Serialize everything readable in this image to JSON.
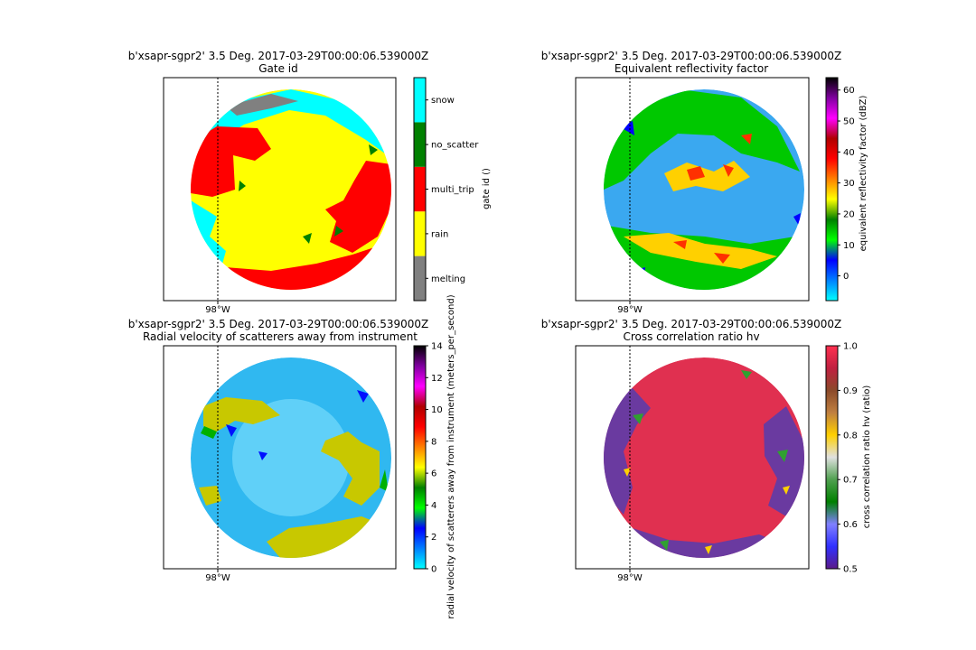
{
  "figure": {
    "background": "#ffffff"
  },
  "chart_data": [
    {
      "type": "heatmap",
      "kind": "categorical",
      "title": "b'xsapr-sgpr2' 3.5 Deg. 2017-03-29T00:00:06.539000Z",
      "subtitle": "Gate id",
      "colorbar_label": "gate id ()",
      "categories": [
        "melting",
        "rain",
        "multi_trip",
        "no_scatter",
        "snow"
      ],
      "category_colors": [
        "#808080",
        "#ffff00",
        "#ff0000",
        "#008000",
        "#00ffff"
      ],
      "xtick_labels": [
        "98°W"
      ],
      "gridline": "98°W dotted meridian"
    },
    {
      "type": "heatmap",
      "kind": "continuous",
      "title": "b'xsapr-sgpr2' 3.5 Deg. 2017-03-29T00:00:06.539000Z",
      "subtitle": "Equivalent reflectivity factor",
      "colorbar_label": "equivalent reflectivity factor (dBZ)",
      "vmin": -8,
      "vmax": 64,
      "colorbar_ticks": [
        0,
        10,
        20,
        30,
        40,
        50,
        60
      ],
      "colormap_stops": [
        "#00ffff",
        "#0080ff",
        "#0000ff",
        "#00ff00",
        "#008000",
        "#ffff00",
        "#ff8000",
        "#ff0000",
        "#b00000",
        "#ff00ff",
        "#8000a0",
        "#000000"
      ],
      "xtick_labels": [
        "98°W"
      ]
    },
    {
      "type": "heatmap",
      "kind": "continuous",
      "title": "b'xsapr-sgpr2' 3.5 Deg. 2017-03-29T00:00:06.539000Z",
      "subtitle": "Radial velocity of scatterers away from instrument",
      "colorbar_label": "radial velocity of scatterers away from instrument (meters_per_second)",
      "vmin": 0,
      "vmax": 14,
      "colorbar_ticks": [
        0,
        2,
        4,
        6,
        8,
        10,
        12,
        14
      ],
      "colormap_stops": [
        "#00ffff",
        "#0080ff",
        "#0000ff",
        "#00ff00",
        "#008000",
        "#ffff00",
        "#ff8000",
        "#ff0000",
        "#b00000",
        "#ff00ff",
        "#8000a0",
        "#000000"
      ],
      "xtick_labels": [
        "98°W"
      ]
    },
    {
      "type": "heatmap",
      "kind": "continuous",
      "title": "b'xsapr-sgpr2' 3.5 Deg. 2017-03-29T00:00:06.539000Z",
      "subtitle": "Cross correlation ratio hv",
      "colorbar_label": "cross correlation ratio hv (ratio)",
      "vmin": 0.5,
      "vmax": 1.0,
      "colorbar_ticks": [
        0.5,
        0.6,
        0.7,
        0.8,
        0.9,
        1.0
      ],
      "colormap_stops": [
        "#5a1a8a",
        "#3030ff",
        "#8080ff",
        "#008000",
        "#50a050",
        "#e0e0e0",
        "#ffd000",
        "#c08040",
        "#8b4a2a",
        "#c02040",
        "#ff3050"
      ],
      "xtick_labels": [
        "98°W"
      ]
    }
  ]
}
